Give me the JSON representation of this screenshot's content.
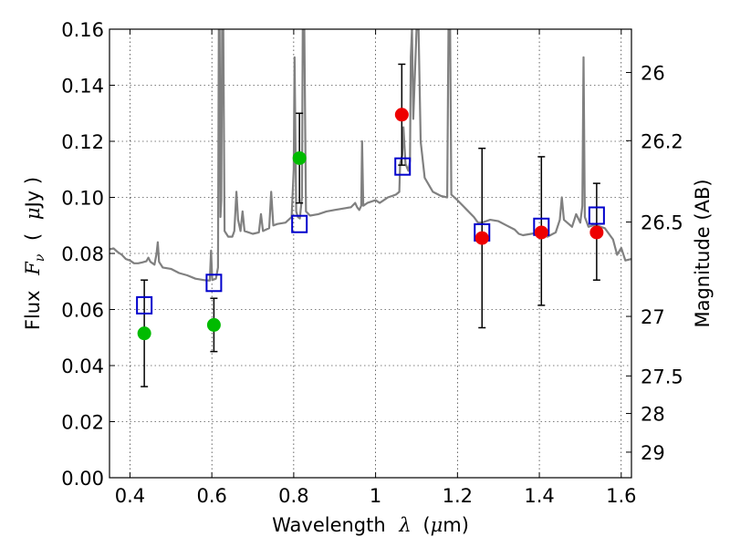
{
  "chart_data": {
    "type": "scatter",
    "title": "",
    "xlabel": {
      "prefix": "Wavelength",
      "symbol": "λ",
      "unit_open": "(",
      "unit_mu": "μ",
      "unit_rest": "m)"
    },
    "ylabel": {
      "prefix": "Flux",
      "symbol": "F",
      "subscript": "ν",
      "unit_open": "(",
      "unit_mu": "μ",
      "unit_rest": "Jy )"
    },
    "y2label": "Magnitude (AB)",
    "xlim": [
      0.35,
      1.625
    ],
    "ylim": [
      0.0,
      0.16
    ],
    "grid": true,
    "x_ticks": [
      {
        "value": 0.4,
        "label": "0.4"
      },
      {
        "value": 0.6,
        "label": "0.6"
      },
      {
        "value": 0.8,
        "label": "0.8"
      },
      {
        "value": 1.0,
        "label": "1"
      },
      {
        "value": 1.2,
        "label": "1.2"
      },
      {
        "value": 1.4,
        "label": "1.4"
      },
      {
        "value": 1.6,
        "label": "1.6"
      }
    ],
    "y_ticks": [
      {
        "value": 0.0,
        "label": "0.00"
      },
      {
        "value": 0.02,
        "label": "0.02"
      },
      {
        "value": 0.04,
        "label": "0.04"
      },
      {
        "value": 0.06,
        "label": "0.06"
      },
      {
        "value": 0.08,
        "label": "0.08"
      },
      {
        "value": 0.1,
        "label": "0.10"
      },
      {
        "value": 0.12,
        "label": "0.12"
      },
      {
        "value": 0.14,
        "label": "0.14"
      },
      {
        "value": 0.16,
        "label": "0.16"
      }
    ],
    "y2_ticks": [
      {
        "mag": 26,
        "label": "26"
      },
      {
        "mag": 26.2,
        "label": "26.2"
      },
      {
        "mag": 26.5,
        "label": "26.5"
      },
      {
        "mag": 27,
        "label": "27"
      },
      {
        "mag": 27.5,
        "label": "27.5"
      },
      {
        "mag": 28,
        "label": "28"
      },
      {
        "mag": 29,
        "label": "29"
      }
    ],
    "series": [
      {
        "kind": "line",
        "color": "#808080",
        "points": [
          [
            0.35,
            0.0815
          ],
          [
            0.36,
            0.0818
          ],
          [
            0.37,
            0.0805
          ],
          [
            0.38,
            0.0795
          ],
          [
            0.39,
            0.078
          ],
          [
            0.4,
            0.0775
          ],
          [
            0.41,
            0.0765
          ],
          [
            0.42,
            0.0765
          ],
          [
            0.43,
            0.0768
          ],
          [
            0.44,
            0.0772
          ],
          [
            0.445,
            0.0785
          ],
          [
            0.45,
            0.077
          ],
          [
            0.46,
            0.076
          ],
          [
            0.465,
            0.08
          ],
          [
            0.468,
            0.084
          ],
          [
            0.471,
            0.077
          ],
          [
            0.48,
            0.075
          ],
          [
            0.5,
            0.0745
          ],
          [
            0.52,
            0.073
          ],
          [
            0.54,
            0.0722
          ],
          [
            0.56,
            0.071
          ],
          [
            0.58,
            0.0705
          ],
          [
            0.595,
            0.0703
          ],
          [
            0.598,
            0.081
          ],
          [
            0.601,
            0.0705
          ],
          [
            0.61,
            0.071
          ],
          [
            0.615,
            0.075
          ],
          [
            0.617,
            0.16
          ],
          [
            0.619,
            0.16
          ],
          [
            0.621,
            0.093
          ],
          [
            0.623,
            0.099
          ],
          [
            0.625,
            0.16
          ],
          [
            0.628,
            0.16
          ],
          [
            0.631,
            0.088
          ],
          [
            0.64,
            0.086
          ],
          [
            0.65,
            0.086
          ],
          [
            0.655,
            0.088
          ],
          [
            0.66,
            0.102
          ],
          [
            0.664,
            0.092
          ],
          [
            0.67,
            0.088
          ],
          [
            0.675,
            0.095
          ],
          [
            0.68,
            0.088
          ],
          [
            0.7,
            0.087
          ],
          [
            0.715,
            0.0875
          ],
          [
            0.72,
            0.094
          ],
          [
            0.725,
            0.088
          ],
          [
            0.74,
            0.089
          ],
          [
            0.745,
            0.102
          ],
          [
            0.75,
            0.09
          ],
          [
            0.76,
            0.0905
          ],
          [
            0.78,
            0.091
          ],
          [
            0.795,
            0.093
          ],
          [
            0.8,
            0.11
          ],
          [
            0.802,
            0.15
          ],
          [
            0.806,
            0.095
          ],
          [
            0.81,
            0.093
          ],
          [
            0.815,
            0.0925
          ],
          [
            0.82,
            0.1
          ],
          [
            0.822,
            0.16
          ],
          [
            0.826,
            0.16
          ],
          [
            0.83,
            0.095
          ],
          [
            0.84,
            0.0935
          ],
          [
            0.86,
            0.094
          ],
          [
            0.88,
            0.095
          ],
          [
            0.9,
            0.0955
          ],
          [
            0.92,
            0.096
          ],
          [
            0.94,
            0.0965
          ],
          [
            0.95,
            0.098
          ],
          [
            0.955,
            0.0965
          ],
          [
            0.96,
            0.0955
          ],
          [
            0.965,
            0.097
          ],
          [
            0.967,
            0.12
          ],
          [
            0.97,
            0.097
          ],
          [
            0.98,
            0.098
          ],
          [
            0.99,
            0.0985
          ],
          [
            1.0,
            0.099
          ],
          [
            1.01,
            0.098
          ],
          [
            1.02,
            0.099
          ],
          [
            1.03,
            0.1
          ],
          [
            1.04,
            0.1005
          ],
          [
            1.05,
            0.101
          ],
          [
            1.058,
            0.102
          ],
          [
            1.06,
            0.112
          ],
          [
            1.065,
            0.115
          ],
          [
            1.068,
            0.125
          ],
          [
            1.073,
            0.112
          ],
          [
            1.08,
            0.1095
          ],
          [
            1.084,
            0.113
          ],
          [
            1.086,
            0.15
          ],
          [
            1.089,
            0.16
          ],
          [
            1.092,
            0.128
          ],
          [
            1.1,
            0.16
          ],
          [
            1.105,
            0.16
          ],
          [
            1.11,
            0.12
          ],
          [
            1.12,
            0.107
          ],
          [
            1.14,
            0.102
          ],
          [
            1.16,
            0.1005
          ],
          [
            1.175,
            0.1
          ],
          [
            1.178,
            0.16
          ],
          [
            1.182,
            0.16
          ],
          [
            1.185,
            0.101
          ],
          [
            1.2,
            0.099
          ],
          [
            1.22,
            0.096
          ],
          [
            1.24,
            0.093
          ],
          [
            1.25,
            0.091
          ],
          [
            1.26,
            0.091
          ],
          [
            1.28,
            0.092
          ],
          [
            1.3,
            0.0915
          ],
          [
            1.32,
            0.09
          ],
          [
            1.34,
            0.0885
          ],
          [
            1.35,
            0.087
          ],
          [
            1.36,
            0.0865
          ],
          [
            1.38,
            0.087
          ],
          [
            1.4,
            0.0875
          ],
          [
            1.42,
            0.086
          ],
          [
            1.44,
            0.0875
          ],
          [
            1.45,
            0.092
          ],
          [
            1.455,
            0.1
          ],
          [
            1.46,
            0.092
          ],
          [
            1.48,
            0.0895
          ],
          [
            1.49,
            0.094
          ],
          [
            1.5,
            0.091
          ],
          [
            1.505,
            0.097
          ],
          [
            1.508,
            0.15
          ],
          [
            1.511,
            0.093
          ],
          [
            1.52,
            0.0895
          ],
          [
            1.53,
            0.09
          ],
          [
            1.54,
            0.09
          ],
          [
            1.56,
            0.089
          ],
          [
            1.58,
            0.085
          ],
          [
            1.59,
            0.0795
          ],
          [
            1.6,
            0.082
          ],
          [
            1.61,
            0.0775
          ],
          [
            1.625,
            0.078
          ]
        ]
      },
      {
        "kind": "error_points",
        "points": [
          {
            "x": 0.435,
            "y": 0.0515,
            "yerr_low": 0.0325,
            "yerr_high": 0.0705,
            "color": "#00bb00"
          },
          {
            "x": 0.605,
            "y": 0.0545,
            "yerr_low": 0.045,
            "yerr_high": 0.064,
            "color": "#00bb00"
          },
          {
            "x": 0.814,
            "y": 0.114,
            "yerr_low": 0.098,
            "yerr_high": 0.13,
            "color": "#00bb00"
          },
          {
            "x": 1.064,
            "y": 0.1295,
            "yerr_low": 0.1115,
            "yerr_high": 0.1475,
            "color": "#ee0000"
          },
          {
            "x": 1.26,
            "y": 0.0855,
            "yerr_low": 0.0535,
            "yerr_high": 0.1175,
            "color": "#ee0000"
          },
          {
            "x": 1.405,
            "y": 0.0875,
            "yerr_low": 0.0615,
            "yerr_high": 0.1145,
            "color": "#ee0000"
          },
          {
            "x": 1.54,
            "y": 0.0875,
            "yerr_low": 0.0705,
            "yerr_high": 0.105,
            "color": "#ee0000"
          }
        ]
      },
      {
        "kind": "square_markers",
        "color": "#0000cc",
        "points": [
          {
            "x": 0.435,
            "y": 0.0615
          },
          {
            "x": 0.605,
            "y": 0.0695
          },
          {
            "x": 0.814,
            "y": 0.0905
          },
          {
            "x": 1.066,
            "y": 0.111
          },
          {
            "x": 1.26,
            "y": 0.0875
          },
          {
            "x": 1.405,
            "y": 0.0895
          },
          {
            "x": 1.54,
            "y": 0.0935
          }
        ]
      }
    ]
  }
}
